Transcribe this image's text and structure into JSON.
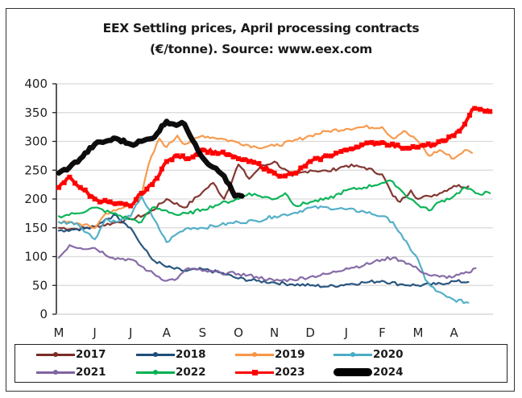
{
  "chart_data": {
    "type": "line",
    "title": "EEX Settling prices, April processing contracts",
    "subtitle": "(€/tonne). Source: www.eex.com",
    "xlabel": "",
    "ylabel": "",
    "ylim": [
      0,
      400
    ],
    "yticks": [
      0,
      50,
      100,
      150,
      200,
      250,
      300,
      350,
      400
    ],
    "xlim": [
      0,
      12.1
    ],
    "categories": [
      "M",
      "J",
      "J",
      "A",
      "S",
      "O",
      "N",
      "D",
      "J",
      "F",
      "M",
      "A"
    ],
    "grid": true,
    "legend_position": "bottom",
    "series": [
      {
        "name": "2017",
        "color": "#7b2c26",
        "width": 2.2,
        "x": [
          0,
          0.5,
          1,
          1.5,
          2,
          2.5,
          3,
          3.5,
          4,
          4.3,
          4.6,
          5,
          5.3,
          5.6,
          6,
          6.5,
          7,
          7.5,
          8,
          8.5,
          9,
          9.3,
          9.5,
          9.8,
          10,
          10.3,
          10.6,
          11,
          11.4
        ],
        "y": [
          150,
          148,
          152,
          158,
          165,
          175,
          200,
          185,
          212,
          228,
          200,
          260,
          235,
          255,
          265,
          240,
          250,
          248,
          258,
          255,
          243,
          205,
          195,
          215,
          200,
          205,
          210,
          223,
          222
        ]
      },
      {
        "name": "2018",
        "color": "#1f4e79",
        "width": 2.2,
        "x": [
          0,
          0.5,
          1,
          1.3,
          1.6,
          2,
          2.3,
          2.6,
          3,
          3.5,
          4,
          4.5,
          5,
          5.5,
          6,
          6.5,
          7,
          7.5,
          8,
          8.5,
          9,
          9.5,
          10,
          10.5,
          11,
          11.4
        ],
        "y": [
          145,
          148,
          150,
          165,
          172,
          150,
          120,
          95,
          82,
          75,
          78,
          72,
          62,
          58,
          55,
          52,
          50,
          48,
          52,
          55,
          58,
          52,
          50,
          52,
          57,
          56
        ]
      },
      {
        "name": "2019",
        "color": "#f79646",
        "width": 2.2,
        "x": [
          0,
          0.5,
          1,
          1.3,
          1.6,
          2,
          2.3,
          2.5,
          2.8,
          3,
          3.3,
          3.5,
          4,
          4.5,
          5,
          5.5,
          6,
          6.5,
          7,
          7.5,
          8,
          8.5,
          9,
          9.3,
          9.6,
          10,
          10.3,
          10.6,
          11,
          11.3,
          11.5
        ],
        "y": [
          160,
          158,
          150,
          175,
          180,
          190,
          205,
          260,
          305,
          290,
          310,
          295,
          310,
          305,
          298,
          290,
          292,
          300,
          310,
          318,
          322,
          325,
          325,
          305,
          318,
          300,
          275,
          285,
          270,
          285,
          280
        ]
      },
      {
        "name": "2020",
        "color": "#4bacc6",
        "width": 2.2,
        "x": [
          0,
          0.5,
          1,
          1.3,
          1.6,
          2,
          2.3,
          2.6,
          3,
          3.3,
          3.6,
          4,
          4.5,
          5,
          5.5,
          6,
          6.5,
          7,
          7.5,
          8,
          8.5,
          9,
          9.3,
          9.6,
          10,
          10.2,
          10.5,
          10.8,
          11,
          11.4
        ],
        "y": [
          160,
          158,
          130,
          165,
          160,
          170,
          205,
          170,
          125,
          140,
          150,
          150,
          155,
          160,
          162,
          170,
          175,
          185,
          185,
          182,
          178,
          170,
          160,
          130,
          95,
          60,
          40,
          30,
          25,
          20
        ]
      },
      {
        "name": "2021",
        "color": "#8064a2",
        "width": 2.2,
        "x": [
          0,
          0.3,
          0.6,
          1,
          1.5,
          2,
          2.5,
          3,
          3.3,
          3.6,
          4,
          4.5,
          5,
          5.5,
          6,
          6.5,
          7,
          7.5,
          8,
          8.5,
          9,
          9.3,
          9.6,
          10,
          10.3,
          10.6,
          11,
          11.4,
          11.6
        ],
        "y": [
          98,
          120,
          115,
          115,
          98,
          95,
          75,
          58,
          62,
          80,
          75,
          72,
          70,
          65,
          58,
          60,
          65,
          70,
          80,
          85,
          95,
          98,
          92,
          78,
          68,
          65,
          65,
          72,
          80
        ]
      },
      {
        "name": "2022",
        "color": "#00b050",
        "width": 2.2,
        "x": [
          0,
          0.5,
          1,
          1.5,
          2,
          2.3,
          2.6,
          3,
          3.3,
          3.6,
          4,
          4.5,
          5,
          5.3,
          5.6,
          6,
          6.3,
          6.6,
          7,
          7.5,
          8,
          8.5,
          9,
          9.3,
          9.6,
          10,
          10.3,
          10.6,
          11,
          11.3,
          11.6,
          12
        ],
        "y": [
          170,
          175,
          185,
          175,
          165,
          160,
          185,
          180,
          172,
          175,
          182,
          192,
          200,
          210,
          205,
          200,
          210,
          188,
          195,
          200,
          215,
          220,
          228,
          230,
          210,
          190,
          180,
          195,
          205,
          220,
          210,
          210
        ]
      },
      {
        "name": "2023",
        "color": "#ff0000",
        "width": 4.2,
        "x": [
          0,
          0.3,
          0.6,
          1,
          1.5,
          2,
          2.3,
          2.6,
          3,
          3.3,
          3.6,
          4,
          4.5,
          5,
          5.5,
          6,
          6.3,
          6.6,
          7,
          7.5,
          8,
          8.5,
          9,
          9.5,
          10,
          10.5,
          11,
          11.3,
          11.5,
          11.8,
          12
        ],
        "y": [
          220,
          238,
          220,
          200,
          192,
          188,
          210,
          225,
          265,
          275,
          270,
          285,
          280,
          270,
          262,
          245,
          240,
          245,
          265,
          275,
          285,
          295,
          298,
          290,
          290,
          295,
          310,
          330,
          355,
          355,
          352
        ]
      },
      {
        "name": "2024",
        "color": "#000000",
        "width": 6.5,
        "x": [
          0,
          0.3,
          0.6,
          1,
          1.3,
          1.6,
          2,
          2.3,
          2.6,
          3,
          3.2,
          3.5,
          3.8,
          4,
          4.3,
          4.6,
          4.9,
          5.1
        ],
        "y": [
          245,
          255,
          270,
          295,
          300,
          305,
          295,
          300,
          305,
          335,
          330,
          330,
          295,
          272,
          255,
          240,
          205,
          205
        ]
      }
    ]
  },
  "legend": {
    "items": [
      {
        "label": "2017"
      },
      {
        "label": "2018"
      },
      {
        "label": "2019"
      },
      {
        "label": "2020"
      },
      {
        "label": "2021"
      },
      {
        "label": "2022"
      },
      {
        "label": "2023"
      },
      {
        "label": "2024"
      }
    ]
  }
}
